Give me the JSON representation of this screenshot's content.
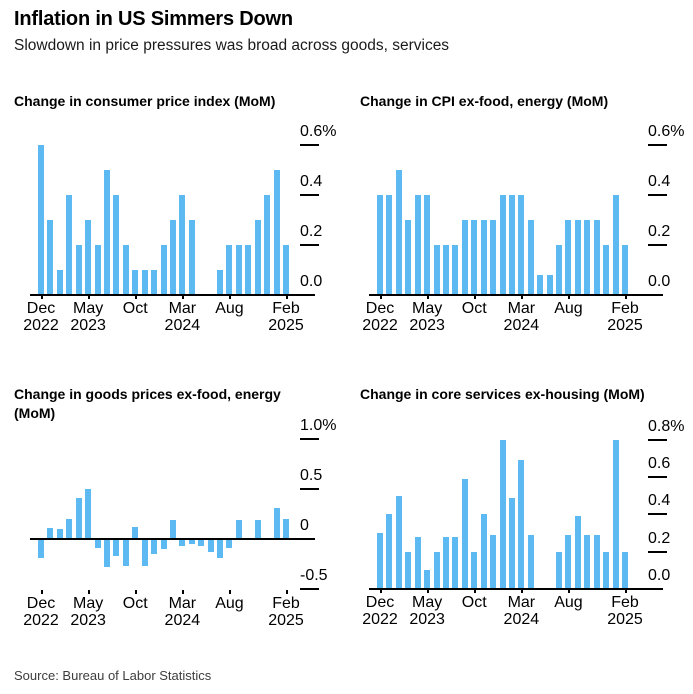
{
  "header": {
    "title": "Inflation in US Simmers Down",
    "subtitle": "Slowdown in price pressures was broad across goods, services"
  },
  "source": "Source: Bureau of Labor Statistics",
  "colors": {
    "bar": "#5cb9f1",
    "axis": "#000000",
    "background": "#ffffff",
    "source_text": "#3d3d3d"
  },
  "chart_data": [
    {
      "type": "bar",
      "title": "Change in consumer price index (MoM)",
      "categories": [
        "Dec 2022",
        "Jan 2023",
        "Feb 2023",
        "Mar 2023",
        "Apr 2023",
        "May 2023",
        "Jun 2023",
        "Jul 2023",
        "Aug 2023",
        "Sep 2023",
        "Oct 2023",
        "Nov 2023",
        "Dec 2023",
        "Jan 2024",
        "Feb 2024",
        "Mar 2024",
        "Apr 2024",
        "May 2024",
        "Jun 2024",
        "Jul 2024",
        "Aug 2024",
        "Sep 2024",
        "Oct 2024",
        "Nov 2024",
        "Dec 2024",
        "Jan 2025",
        "Feb 2025"
      ],
      "values": [
        0.6,
        0.3,
        0.1,
        0.4,
        0.2,
        0.3,
        0.2,
        0.5,
        0.4,
        0.2,
        0.1,
        0.1,
        0.1,
        0.2,
        0.3,
        0.4,
        0.3,
        0,
        0,
        0.1,
        0.2,
        0.2,
        0.2,
        0.3,
        0.4,
        0.5,
        0.2
      ],
      "ylim": [
        0,
        0.668
      ],
      "grid": false,
      "legend": "none",
      "y_ticks": [
        {
          "label": "0.6%",
          "value": 0.6
        },
        {
          "label": "0.4",
          "value": 0.4
        },
        {
          "label": "0.2",
          "value": 0.2
        },
        {
          "label": "0.0",
          "value": 0.0
        }
      ],
      "x_ticks": [
        {
          "index": 0,
          "line1": "Dec",
          "line2": "2022"
        },
        {
          "index": 5,
          "line1": "May",
          "line2": "2023"
        },
        {
          "index": 10,
          "line1": "Oct",
          "line2": ""
        },
        {
          "index": 15,
          "line1": "Mar",
          "line2": "2024"
        },
        {
          "index": 20,
          "line1": "Aug",
          "line2": ""
        },
        {
          "index": 26,
          "line1": "Feb",
          "line2": "2025"
        }
      ]
    },
    {
      "type": "bar",
      "title": "Change in CPI ex-food, energy (MoM)",
      "categories": [
        "Dec 2022",
        "Jan 2023",
        "Feb 2023",
        "Mar 2023",
        "Apr 2023",
        "May 2023",
        "Jun 2023",
        "Jul 2023",
        "Aug 2023",
        "Sep 2023",
        "Oct 2023",
        "Nov 2023",
        "Dec 2023",
        "Jan 2024",
        "Feb 2024",
        "Mar 2024",
        "Apr 2024",
        "May 2024",
        "Jun 2024",
        "Jul 2024",
        "Aug 2024",
        "Sep 2024",
        "Oct 2024",
        "Nov 2024",
        "Dec 2024",
        "Jan 2025",
        "Feb 2025"
      ],
      "values": [
        0.4,
        0.4,
        0.5,
        0.3,
        0.4,
        0.4,
        0.2,
        0.2,
        0.2,
        0.3,
        0.3,
        0.3,
        0.3,
        0.4,
        0.4,
        0.4,
        0.3,
        0.08,
        0.08,
        0.2,
        0.3,
        0.3,
        0.3,
        0.3,
        0.2,
        0.4,
        0.2
      ],
      "ylim": [
        0,
        0.668
      ],
      "grid": false,
      "legend": "none",
      "y_ticks": [
        {
          "label": "0.6%",
          "value": 0.6
        },
        {
          "label": "0.4",
          "value": 0.4
        },
        {
          "label": "0.2",
          "value": 0.2
        },
        {
          "label": "0.0",
          "value": 0.0
        }
      ],
      "x_ticks": [
        {
          "index": 0,
          "line1": "Dec",
          "line2": "2022"
        },
        {
          "index": 5,
          "line1": "May",
          "line2": "2023"
        },
        {
          "index": 10,
          "line1": "Oct",
          "line2": ""
        },
        {
          "index": 15,
          "line1": "Mar",
          "line2": "2024"
        },
        {
          "index": 20,
          "line1": "Aug",
          "line2": ""
        },
        {
          "index": 26,
          "line1": "Feb",
          "line2": "2025"
        }
      ]
    },
    {
      "type": "bar",
      "title": "Change in goods prices ex-food, energy (MoM)",
      "categories": [
        "Dec 2022",
        "Jan 2023",
        "Feb 2023",
        "Mar 2023",
        "Apr 2023",
        "May 2023",
        "Jun 2023",
        "Jul 2023",
        "Aug 2023",
        "Sep 2023",
        "Oct 2023",
        "Nov 2023",
        "Dec 2023",
        "Jan 2024",
        "Feb 2024",
        "Mar 2024",
        "Apr 2024",
        "May 2024",
        "Jun 2024",
        "Jul 2024",
        "Aug 2024",
        "Sep 2024",
        "Oct 2024",
        "Nov 2024",
        "Dec 2024",
        "Jan 2025",
        "Feb 2025"
      ],
      "values": [
        -0.19,
        0.11,
        0.1,
        0.2,
        0.41,
        0.5,
        -0.09,
        -0.28,
        -0.17,
        -0.27,
        0.12,
        -0.27,
        -0.15,
        -0.1,
        0.19,
        -0.07,
        -0.05,
        -0.07,
        -0.13,
        -0.19,
        -0.09,
        0.19,
        0,
        0.19,
        0,
        0.31,
        0.2
      ],
      "ylim": [
        -0.51,
        1.02
      ],
      "grid": false,
      "legend": "none",
      "y_ticks": [
        {
          "label": "1.0%",
          "value": 1.0
        },
        {
          "label": "0.5",
          "value": 0.5
        },
        {
          "label": "0",
          "value": 0.0
        },
        {
          "label": "-0.5",
          "value": -0.5
        }
      ],
      "x_ticks": [
        {
          "index": 0,
          "line1": "Dec",
          "line2": "2022"
        },
        {
          "index": 5,
          "line1": "May",
          "line2": "2023"
        },
        {
          "index": 10,
          "line1": "Oct",
          "line2": ""
        },
        {
          "index": 15,
          "line1": "Mar",
          "line2": "2024"
        },
        {
          "index": 20,
          "line1": "Aug",
          "line2": ""
        },
        {
          "index": 26,
          "line1": "Feb",
          "line2": "2025"
        }
      ]
    },
    {
      "type": "bar",
      "title": "Change in core services ex-housing (MoM)",
      "categories": [
        "Dec 2022",
        "Jan 2023",
        "Feb 2023",
        "Mar 2023",
        "Apr 2023",
        "May 2023",
        "Jun 2023",
        "Jul 2023",
        "Aug 2023",
        "Sep 2023",
        "Oct 2023",
        "Nov 2023",
        "Dec 2023",
        "Jan 2024",
        "Feb 2024",
        "Mar 2024",
        "Apr 2024",
        "May 2024",
        "Jun 2024",
        "Jul 2024",
        "Aug 2024",
        "Sep 2024",
        "Oct 2024",
        "Nov 2024",
        "Dec 2024",
        "Jan 2025",
        "Feb 2025"
      ],
      "values": [
        0.3,
        0.4,
        0.5,
        0.2,
        0.28,
        0.1,
        0.2,
        0.28,
        0.28,
        0.59,
        0.2,
        0.4,
        0.29,
        0.8,
        0.49,
        0.69,
        0.29,
        0,
        0,
        0.2,
        0.29,
        0.39,
        0.29,
        0.29,
        0.2,
        0.8,
        0.2
      ],
      "ylim": [
        0,
        0.82
      ],
      "grid": false,
      "legend": "none",
      "y_ticks": [
        {
          "label": "0.8%",
          "value": 0.8
        },
        {
          "label": "0.6",
          "value": 0.6
        },
        {
          "label": "0.4",
          "value": 0.4
        },
        {
          "label": "0.2",
          "value": 0.2
        },
        {
          "label": "0.0",
          "value": 0.0
        }
      ],
      "x_ticks": [
        {
          "index": 0,
          "line1": "Dec",
          "line2": "2022"
        },
        {
          "index": 5,
          "line1": "May",
          "line2": "2023"
        },
        {
          "index": 10,
          "line1": "Oct",
          "line2": ""
        },
        {
          "index": 15,
          "line1": "Mar",
          "line2": "2024"
        },
        {
          "index": 20,
          "line1": "Aug",
          "line2": ""
        },
        {
          "index": 26,
          "line1": "Feb",
          "line2": "2025"
        }
      ]
    }
  ]
}
